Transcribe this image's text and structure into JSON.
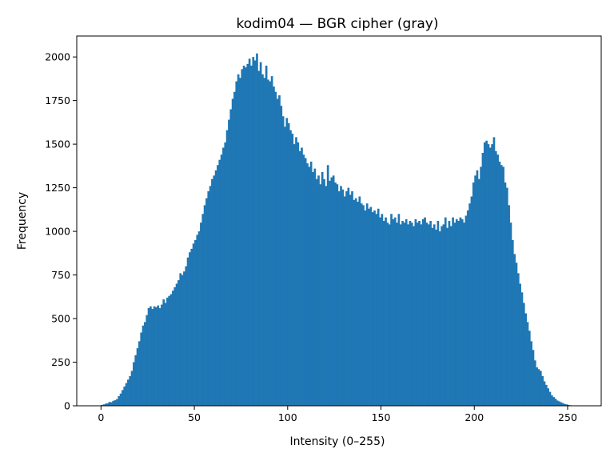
{
  "chart_data": {
    "type": "bar",
    "title": "kodim04 — BGR cipher (gray)",
    "xlabel": "Intensity (0–255)",
    "ylabel": "Frequency",
    "xlim": [
      -13,
      268
    ],
    "ylim": [
      0,
      2120
    ],
    "xticks": [
      0,
      50,
      100,
      150,
      200,
      250
    ],
    "yticks": [
      0,
      250,
      500,
      750,
      1000,
      1250,
      1500,
      1750,
      2000
    ],
    "bar_color": "#1f77b4",
    "grid": false,
    "legend": "none",
    "bin_start": 0,
    "bin_width": 1,
    "values": [
      5,
      8,
      12,
      14,
      22,
      20,
      28,
      32,
      38,
      55,
      70,
      90,
      110,
      130,
      150,
      170,
      200,
      250,
      290,
      330,
      370,
      420,
      460,
      480,
      520,
      560,
      570,
      555,
      570,
      565,
      575,
      560,
      580,
      610,
      590,
      620,
      630,
      640,
      660,
      680,
      700,
      720,
      760,
      750,
      770,
      800,
      850,
      880,
      900,
      930,
      950,
      980,
      1000,
      1050,
      1100,
      1150,
      1190,
      1230,
      1260,
      1300,
      1320,
      1350,
      1380,
      1410,
      1440,
      1480,
      1510,
      1580,
      1640,
      1700,
      1760,
      1800,
      1860,
      1900,
      1880,
      1930,
      1950,
      1940,
      1960,
      1990,
      1950,
      2000,
      1980,
      2020,
      1920,
      1970,
      1900,
      1880,
      1950,
      1870,
      1860,
      1890,
      1830,
      1800,
      1760,
      1780,
      1720,
      1660,
      1600,
      1650,
      1620,
      1580,
      1560,
      1500,
      1540,
      1510,
      1460,
      1480,
      1440,
      1420,
      1390,
      1370,
      1400,
      1340,
      1360,
      1300,
      1320,
      1270,
      1340,
      1300,
      1260,
      1380,
      1290,
      1310,
      1320,
      1280,
      1270,
      1230,
      1260,
      1240,
      1200,
      1230,
      1250,
      1210,
      1230,
      1180,
      1190,
      1170,
      1200,
      1160,
      1150,
      1120,
      1160,
      1130,
      1140,
      1110,
      1120,
      1100,
      1130,
      1080,
      1100,
      1060,
      1080,
      1050,
      1040,
      1100,
      1070,
      1080,
      1050,
      1100,
      1040,
      1060,
      1050,
      1070,
      1040,
      1060,
      1050,
      1030,
      1070,
      1050,
      1060,
      1040,
      1070,
      1080,
      1050,
      1040,
      1060,
      1020,
      1040,
      1010,
      1060,
      1000,
      1030,
      1040,
      1080,
      1020,
      1060,
      1030,
      1080,
      1050,
      1070,
      1060,
      1080,
      1070,
      1050,
      1090,
      1120,
      1160,
      1200,
      1280,
      1320,
      1350,
      1300,
      1370,
      1450,
      1510,
      1520,
      1500,
      1480,
      1500,
      1540,
      1460,
      1440,
      1400,
      1380,
      1370,
      1280,
      1250,
      1150,
      1050,
      950,
      870,
      820,
      760,
      700,
      650,
      590,
      530,
      480,
      430,
      370,
      320,
      260,
      220,
      210,
      200,
      170,
      140,
      120,
      100,
      80,
      60,
      50,
      40,
      30,
      25,
      20,
      15,
      10,
      8,
      5,
      3,
      2
    ]
  }
}
